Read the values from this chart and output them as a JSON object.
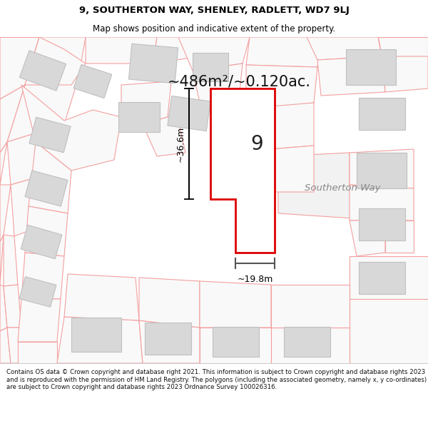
{
  "title_line1": "9, SOUTHERTON WAY, SHENLEY, RADLETT, WD7 9LJ",
  "title_line2": "Map shows position and indicative extent of the property.",
  "area_label": "~486m²/~0.120ac.",
  "dim_vertical": "~36.6m",
  "dim_horizontal": "~19.8m",
  "property_label": "9",
  "road_label": "Southerton Way",
  "footer": "Contains OS data © Crown copyright and database right 2021. This information is subject to Crown copyright and database rights 2023 and is reproduced with the permission of HM Land Registry. The polygons (including the associated geometry, namely x, y co-ordinates) are subject to Crown copyright and database rights 2023 Ordnance Survey 100026316.",
  "map_bg": "#ffffff",
  "property_fill": "#ffffff",
  "property_edge": "#dd0000",
  "other_edge": "#f4a0a0",
  "other_fill": "#f7f7f7",
  "building_fill": "#d8d8d8",
  "building_edge": "#c0c0c0",
  "title_bg": "#ffffff",
  "footer_bg": "#ffffff"
}
